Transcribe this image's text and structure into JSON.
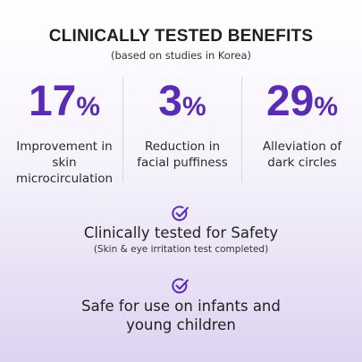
{
  "header": {
    "title": "CLINICALLY TESTED BENEFITS",
    "subtitle": "(based on studies in Korea)"
  },
  "stats": [
    {
      "value": "17",
      "unit": "%",
      "label": "Improvement in skin microcirculation"
    },
    {
      "value": "3",
      "unit": "%",
      "label": "Reduction in facial puffiness"
    },
    {
      "value": "29",
      "unit": "%",
      "label": "Alleviation of dark circles"
    }
  ],
  "claims": [
    {
      "title": "Clinically tested for Safety",
      "note": "(Skin & eye irritation test completed)"
    },
    {
      "title": "Safe for use on infants and young children"
    }
  ]
}
